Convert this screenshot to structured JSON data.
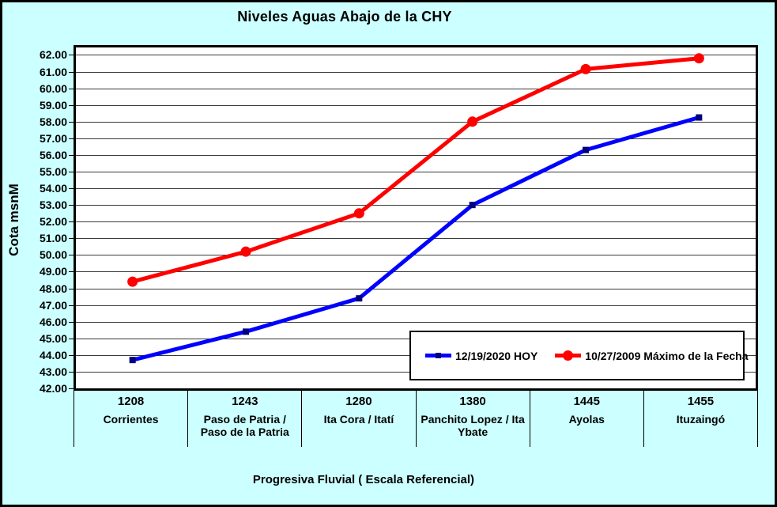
{
  "title": "Niveles Aguas Abajo de la CHY",
  "y_axis_label": "Cota msnM",
  "x_axis_label": "Progresiva Fluvial ( Escala Referencial)",
  "colors": {
    "background": "#CCFFFF",
    "plot_background": "#FFFFFF",
    "gridline": "#3A3A3A",
    "border": "#000000",
    "series_hoy": "#0000FF",
    "series_hoy_marker": "#000080",
    "series_max": "#FF0000"
  },
  "chart_data": {
    "type": "line",
    "title": "Niveles Aguas Abajo de la CHY",
    "xlabel": "Progresiva Fluvial ( Escala Referencial)",
    "ylabel": "Cota msnM",
    "ylim": [
      42,
      62
    ],
    "ytick_min": 42,
    "ytick_max": 62,
    "ytick_step": 1,
    "ytick_format_decimals": 2,
    "grid": true,
    "legend_position": "inside-bottom-right",
    "categories": [
      {
        "km": "1208",
        "name": "Corrientes"
      },
      {
        "km": "1243",
        "name": "Paso de Patria / Paso de la Patria"
      },
      {
        "km": "1280",
        "name": "Ita Cora / Itatí"
      },
      {
        "km": "1380",
        "name": "Panchito Lopez / Ita Ybate"
      },
      {
        "km": "1445",
        "name": "Ayolas"
      },
      {
        "km": "1455",
        "name": "Ituzaingó"
      }
    ],
    "series": [
      {
        "name": "12/19/2020 HOY",
        "color": "#0000FF",
        "marker": "square",
        "marker_color": "#000080",
        "values": [
          43.7,
          45.4,
          47.4,
          53.0,
          56.3,
          58.25
        ]
      },
      {
        "name": "10/27/2009 Máximo de la Fecha",
        "color": "#FF0000",
        "marker": "circle",
        "marker_color": "#FF0000",
        "values": [
          48.4,
          50.2,
          52.5,
          58.0,
          61.15,
          61.8
        ]
      }
    ]
  }
}
